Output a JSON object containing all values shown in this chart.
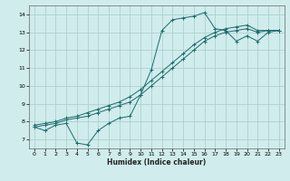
{
  "xlabel": "Humidex (Indice chaleur)",
  "background_color": "#d0ecec",
  "grid_color": "#a8cccc",
  "line_color": "#1a6b6b",
  "xlim": [
    -0.5,
    23.5
  ],
  "ylim": [
    6.5,
    14.5
  ],
  "xticks": [
    0,
    1,
    2,
    3,
    4,
    5,
    6,
    7,
    8,
    9,
    10,
    11,
    12,
    13,
    14,
    15,
    16,
    17,
    18,
    19,
    20,
    21,
    22,
    23
  ],
  "yticks": [
    7,
    8,
    9,
    10,
    11,
    12,
    13,
    14
  ],
  "line1_x": [
    0,
    1,
    2,
    3,
    4,
    5,
    6,
    7,
    8,
    9,
    10,
    11,
    12,
    13,
    14,
    15,
    16,
    17,
    18,
    19,
    20,
    21,
    22,
    23
  ],
  "line1_y": [
    7.7,
    7.5,
    7.8,
    7.9,
    6.8,
    6.7,
    7.5,
    7.9,
    8.2,
    8.3,
    9.5,
    10.9,
    13.1,
    13.7,
    13.8,
    13.9,
    14.1,
    13.2,
    13.1,
    12.5,
    12.8,
    12.5,
    13.0,
    13.1
  ],
  "line2_x": [
    0,
    1,
    2,
    3,
    4,
    5,
    6,
    7,
    8,
    9,
    10,
    11,
    12,
    13,
    14,
    15,
    16,
    17,
    18,
    19,
    20,
    21,
    22,
    23
  ],
  "line2_y": [
    7.7,
    7.8,
    7.9,
    8.1,
    8.2,
    8.3,
    8.5,
    8.7,
    8.9,
    9.1,
    9.5,
    10.0,
    10.5,
    11.0,
    11.5,
    12.0,
    12.5,
    12.8,
    13.0,
    13.1,
    13.2,
    13.0,
    13.1,
    13.1
  ],
  "line3_x": [
    0,
    1,
    2,
    3,
    4,
    5,
    6,
    7,
    8,
    9,
    10,
    11,
    12,
    13,
    14,
    15,
    16,
    17,
    18,
    19,
    20,
    21,
    22,
    23
  ],
  "line3_y": [
    7.8,
    7.9,
    8.0,
    8.2,
    8.3,
    8.5,
    8.7,
    8.9,
    9.1,
    9.4,
    9.8,
    10.3,
    10.8,
    11.3,
    11.8,
    12.3,
    12.7,
    13.0,
    13.2,
    13.3,
    13.4,
    13.1,
    13.1,
    13.1
  ]
}
